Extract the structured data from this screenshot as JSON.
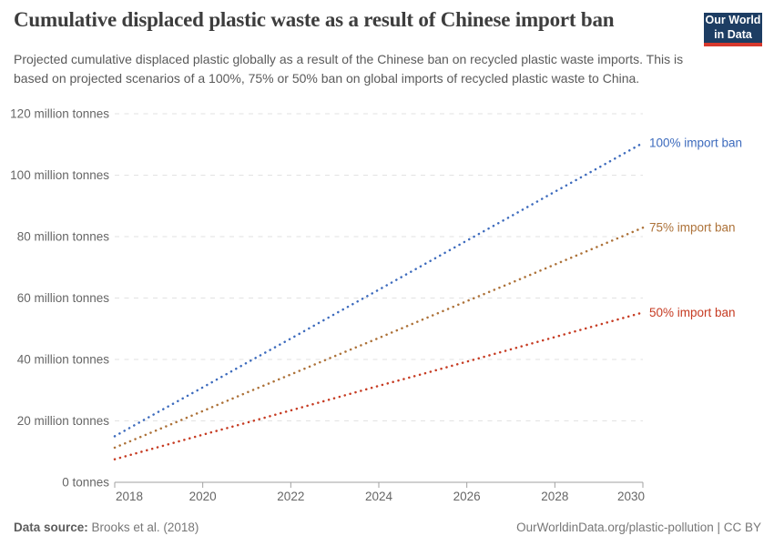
{
  "header": {
    "title": "Cumulative displaced plastic waste as a result of Chinese import ban",
    "subtitle": "Projected cumulative displaced plastic globally as a result of the Chinese ban on recycled plastic waste imports. This is based on projected scenarios of a 100%, 75% or 50% ban on global imports of recycled plastic waste to China.",
    "logo": {
      "line1": "Our World",
      "line2": "in Data",
      "bg_color": "#1d3d63",
      "bar_color": "#d7382d"
    }
  },
  "chart_data": {
    "type": "line",
    "line_style": "dotted",
    "title": "Cumulative displaced plastic waste as a result of Chinese import ban",
    "xlabel": "",
    "ylabel": "",
    "unit": "million tonnes",
    "xlim": [
      2018,
      2030
    ],
    "ylim": [
      0,
      120
    ],
    "grid": "dashed-horizontal",
    "legend_position": "right-of-line-ends",
    "x": [
      2018,
      2019,
      2020,
      2021,
      2022,
      2023,
      2024,
      2025,
      2026,
      2027,
      2028,
      2029,
      2030
    ],
    "x_ticks": [
      2018,
      2020,
      2022,
      2024,
      2026,
      2028,
      2030
    ],
    "y_ticks": [
      {
        "value": 0,
        "label": "0 tonnes"
      },
      {
        "value": 20,
        "label": "20 million tonnes"
      },
      {
        "value": 40,
        "label": "40 million tonnes"
      },
      {
        "value": 60,
        "label": "60 million tonnes"
      },
      {
        "value": 80,
        "label": "80 million tonnes"
      },
      {
        "value": 100,
        "label": "100 million tonnes"
      },
      {
        "value": 120,
        "label": "120 million tonnes"
      }
    ],
    "series": [
      {
        "name": "100% import ban",
        "color": "#3d6bbd",
        "values": [
          15.0,
          23.0,
          30.9,
          38.9,
          46.8,
          54.8,
          62.7,
          70.7,
          78.7,
          86.6,
          94.6,
          102.5,
          110.5
        ]
      },
      {
        "name": "75% import ban",
        "color": "#ad7239",
        "values": [
          11.3,
          17.2,
          23.2,
          29.2,
          35.1,
          41.1,
          47.0,
          53.0,
          59.0,
          64.9,
          70.9,
          76.9,
          82.9
        ]
      },
      {
        "name": "50% import ban",
        "color": "#c63b22",
        "values": [
          7.5,
          11.5,
          15.5,
          19.4,
          23.4,
          27.4,
          31.4,
          35.3,
          39.3,
          43.3,
          47.3,
          51.3,
          55.3
        ]
      }
    ]
  },
  "footer": {
    "source_label": "Data source:",
    "source_value": "Brooks et al. (2018)",
    "right_text": "OurWorldinData.org/plastic-pollution | CC BY"
  }
}
